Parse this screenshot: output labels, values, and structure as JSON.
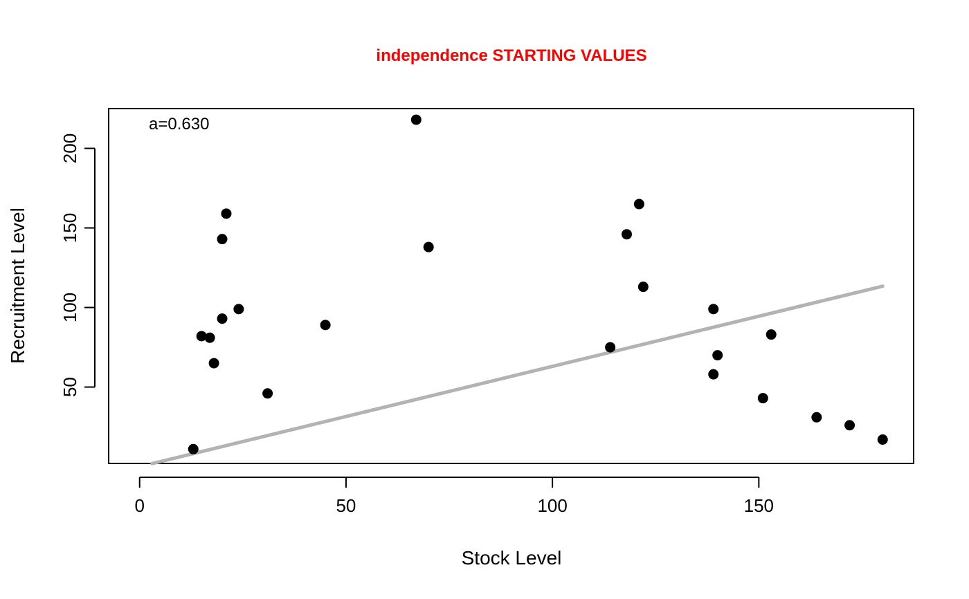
{
  "chart_data": {
    "type": "scatter",
    "title": "independence STARTING VALUES",
    "title_color": "#ff0000",
    "xlabel": "Stock Level",
    "ylabel": "Recruitment Level",
    "annotation": "a=0.630",
    "xlim": [
      -7.5,
      187.5
    ],
    "ylim": [
      2,
      225
    ],
    "x_ticks": [
      0,
      50,
      100,
      150
    ],
    "y_ticks": [
      50,
      100,
      150,
      200
    ],
    "x_tick_labels": [
      "0",
      "50",
      "100",
      "150"
    ],
    "y_tick_labels": [
      "50",
      "100",
      "150",
      "200"
    ],
    "point_color": "#000000",
    "line_color": "#b3b3b3",
    "points": [
      {
        "x": 13,
        "y": 11
      },
      {
        "x": 15,
        "y": 82
      },
      {
        "x": 17,
        "y": 81
      },
      {
        "x": 18,
        "y": 65
      },
      {
        "x": 20,
        "y": 143
      },
      {
        "x": 20,
        "y": 93
      },
      {
        "x": 21,
        "y": 159
      },
      {
        "x": 24,
        "y": 99
      },
      {
        "x": 31,
        "y": 46
      },
      {
        "x": 45,
        "y": 89
      },
      {
        "x": 67,
        "y": 218
      },
      {
        "x": 70,
        "y": 138
      },
      {
        "x": 114,
        "y": 75
      },
      {
        "x": 118,
        "y": 146
      },
      {
        "x": 121,
        "y": 165
      },
      {
        "x": 122,
        "y": 113
      },
      {
        "x": 139,
        "y": 99
      },
      {
        "x": 139,
        "y": 58
      },
      {
        "x": 140,
        "y": 70
      },
      {
        "x": 151,
        "y": 43
      },
      {
        "x": 153,
        "y": 83
      },
      {
        "x": 164,
        "y": 31
      },
      {
        "x": 172,
        "y": 26
      },
      {
        "x": 180,
        "y": 17
      }
    ],
    "fit_line": {
      "slope": 0.63,
      "intercept": 0,
      "x_range": [
        3,
        180
      ]
    }
  }
}
